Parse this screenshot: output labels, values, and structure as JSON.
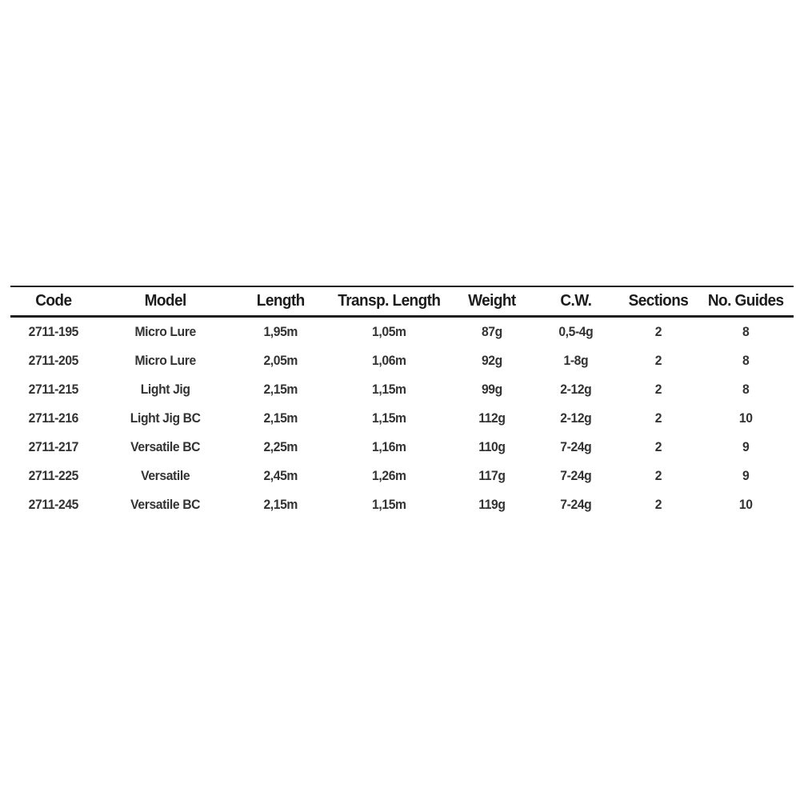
{
  "chart_data": {
    "type": "table",
    "title": "",
    "columns": [
      "Code",
      "Model",
      "Length",
      "Transp. Length",
      "Weight",
      "C.W.",
      "Sections",
      "No. Guides"
    ],
    "rows": [
      [
        "2711-195",
        "Micro Lure",
        "1,95m",
        "1,05m",
        "87g",
        "0,5-4g",
        "2",
        "8"
      ],
      [
        "2711-205",
        "Micro Lure",
        "2,05m",
        "1,06m",
        "92g",
        "1-8g",
        "2",
        "8"
      ],
      [
        "2711-215",
        "Light Jig",
        "2,15m",
        "1,15m",
        "99g",
        "2-12g",
        "2",
        "8"
      ],
      [
        "2711-216",
        "Light Jig BC",
        "2,15m",
        "1,15m",
        "112g",
        "2-12g",
        "2",
        "10"
      ],
      [
        "2711-217",
        "Versatile BC",
        "2,25m",
        "1,16m",
        "110g",
        "7-24g",
        "2",
        "9"
      ],
      [
        "2711-225",
        "Versatile",
        "2,45m",
        "1,26m",
        "117g",
        "7-24g",
        "2",
        "9"
      ],
      [
        "2711-245",
        "Versatile BC",
        "2,15m",
        "1,15m",
        "119g",
        "7-24g",
        "2",
        "10"
      ]
    ]
  },
  "table": {
    "columns": [
      {
        "key": "code",
        "label": "Code"
      },
      {
        "key": "model",
        "label": "Model"
      },
      {
        "key": "length",
        "label": "Length"
      },
      {
        "key": "transp_length",
        "label": "Transp. Length"
      },
      {
        "key": "weight",
        "label": "Weight"
      },
      {
        "key": "cw",
        "label": "C.W."
      },
      {
        "key": "sections",
        "label": "Sections"
      },
      {
        "key": "guides",
        "label": "No. Guides"
      }
    ],
    "rows": [
      {
        "code": "2711-195",
        "model": "Micro Lure",
        "length": "1,95m",
        "transp_length": "1,05m",
        "weight": "87g",
        "cw": "0,5-4g",
        "sections": "2",
        "guides": "8"
      },
      {
        "code": "2711-205",
        "model": "Micro Lure",
        "length": "2,05m",
        "transp_length": "1,06m",
        "weight": "92g",
        "cw": "1-8g",
        "sections": "2",
        "guides": "8"
      },
      {
        "code": "2711-215",
        "model": "Light Jig",
        "length": "2,15m",
        "transp_length": "1,15m",
        "weight": "99g",
        "cw": "2-12g",
        "sections": "2",
        "guides": "8"
      },
      {
        "code": "2711-216",
        "model": "Light Jig BC",
        "length": "2,15m",
        "transp_length": "1,15m",
        "weight": "112g",
        "cw": "2-12g",
        "sections": "2",
        "guides": "10"
      },
      {
        "code": "2711-217",
        "model": "Versatile BC",
        "length": "2,25m",
        "transp_length": "1,16m",
        "weight": "110g",
        "cw": "7-24g",
        "sections": "2",
        "guides": "9"
      },
      {
        "code": "2711-225",
        "model": "Versatile",
        "length": "2,45m",
        "transp_length": "1,26m",
        "weight": "117g",
        "cw": "7-24g",
        "sections": "2",
        "guides": "9"
      },
      {
        "code": "2711-245",
        "model": "Versatile BC",
        "length": "2,15m",
        "transp_length": "1,15m",
        "weight": "119g",
        "cw": "7-24g",
        "sections": "2",
        "guides": "10"
      }
    ]
  },
  "colors": {
    "background": "#ffffff",
    "header_text": "#1c1c1c",
    "body_text": "#333333",
    "rule_line": "#1f1f1f"
  }
}
